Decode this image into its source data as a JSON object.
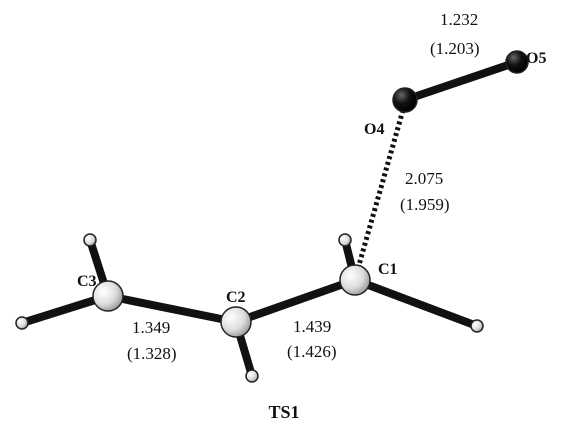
{
  "title": "TS1",
  "atoms": [
    "O5",
    "O4",
    "C1",
    "C2",
    "C3"
  ],
  "bonds": [
    {
      "length": "1.232",
      "alt": "(1.203)"
    },
    {
      "length": "2.075",
      "alt": "(1.959)"
    },
    {
      "length": "1.439",
      "alt": "(1.426)"
    },
    {
      "length": "1.349",
      "alt": "(1.328)"
    }
  ]
}
